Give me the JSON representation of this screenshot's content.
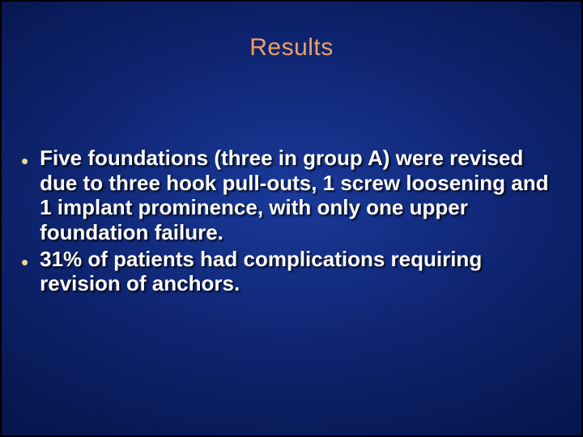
{
  "slide": {
    "title": "Results",
    "title_color": "#f0a060",
    "body_color": "#ffffff",
    "bullet_color": "#e8d898",
    "background_gradient": {
      "center": "#1a3a9a",
      "mid": "#0e2470",
      "outer": "#051448",
      "edge": "#010520"
    },
    "border_color": "#000000",
    "bullets": [
      "Five foundations (three in group A) were revised due to three hook pull-outs, 1 screw loosening and 1 implant prominence, with only one upper foundation failure.",
      "31% of patients had complications requiring revision of anchors."
    ],
    "title_fontsize": 30,
    "body_fontsize": 26
  }
}
